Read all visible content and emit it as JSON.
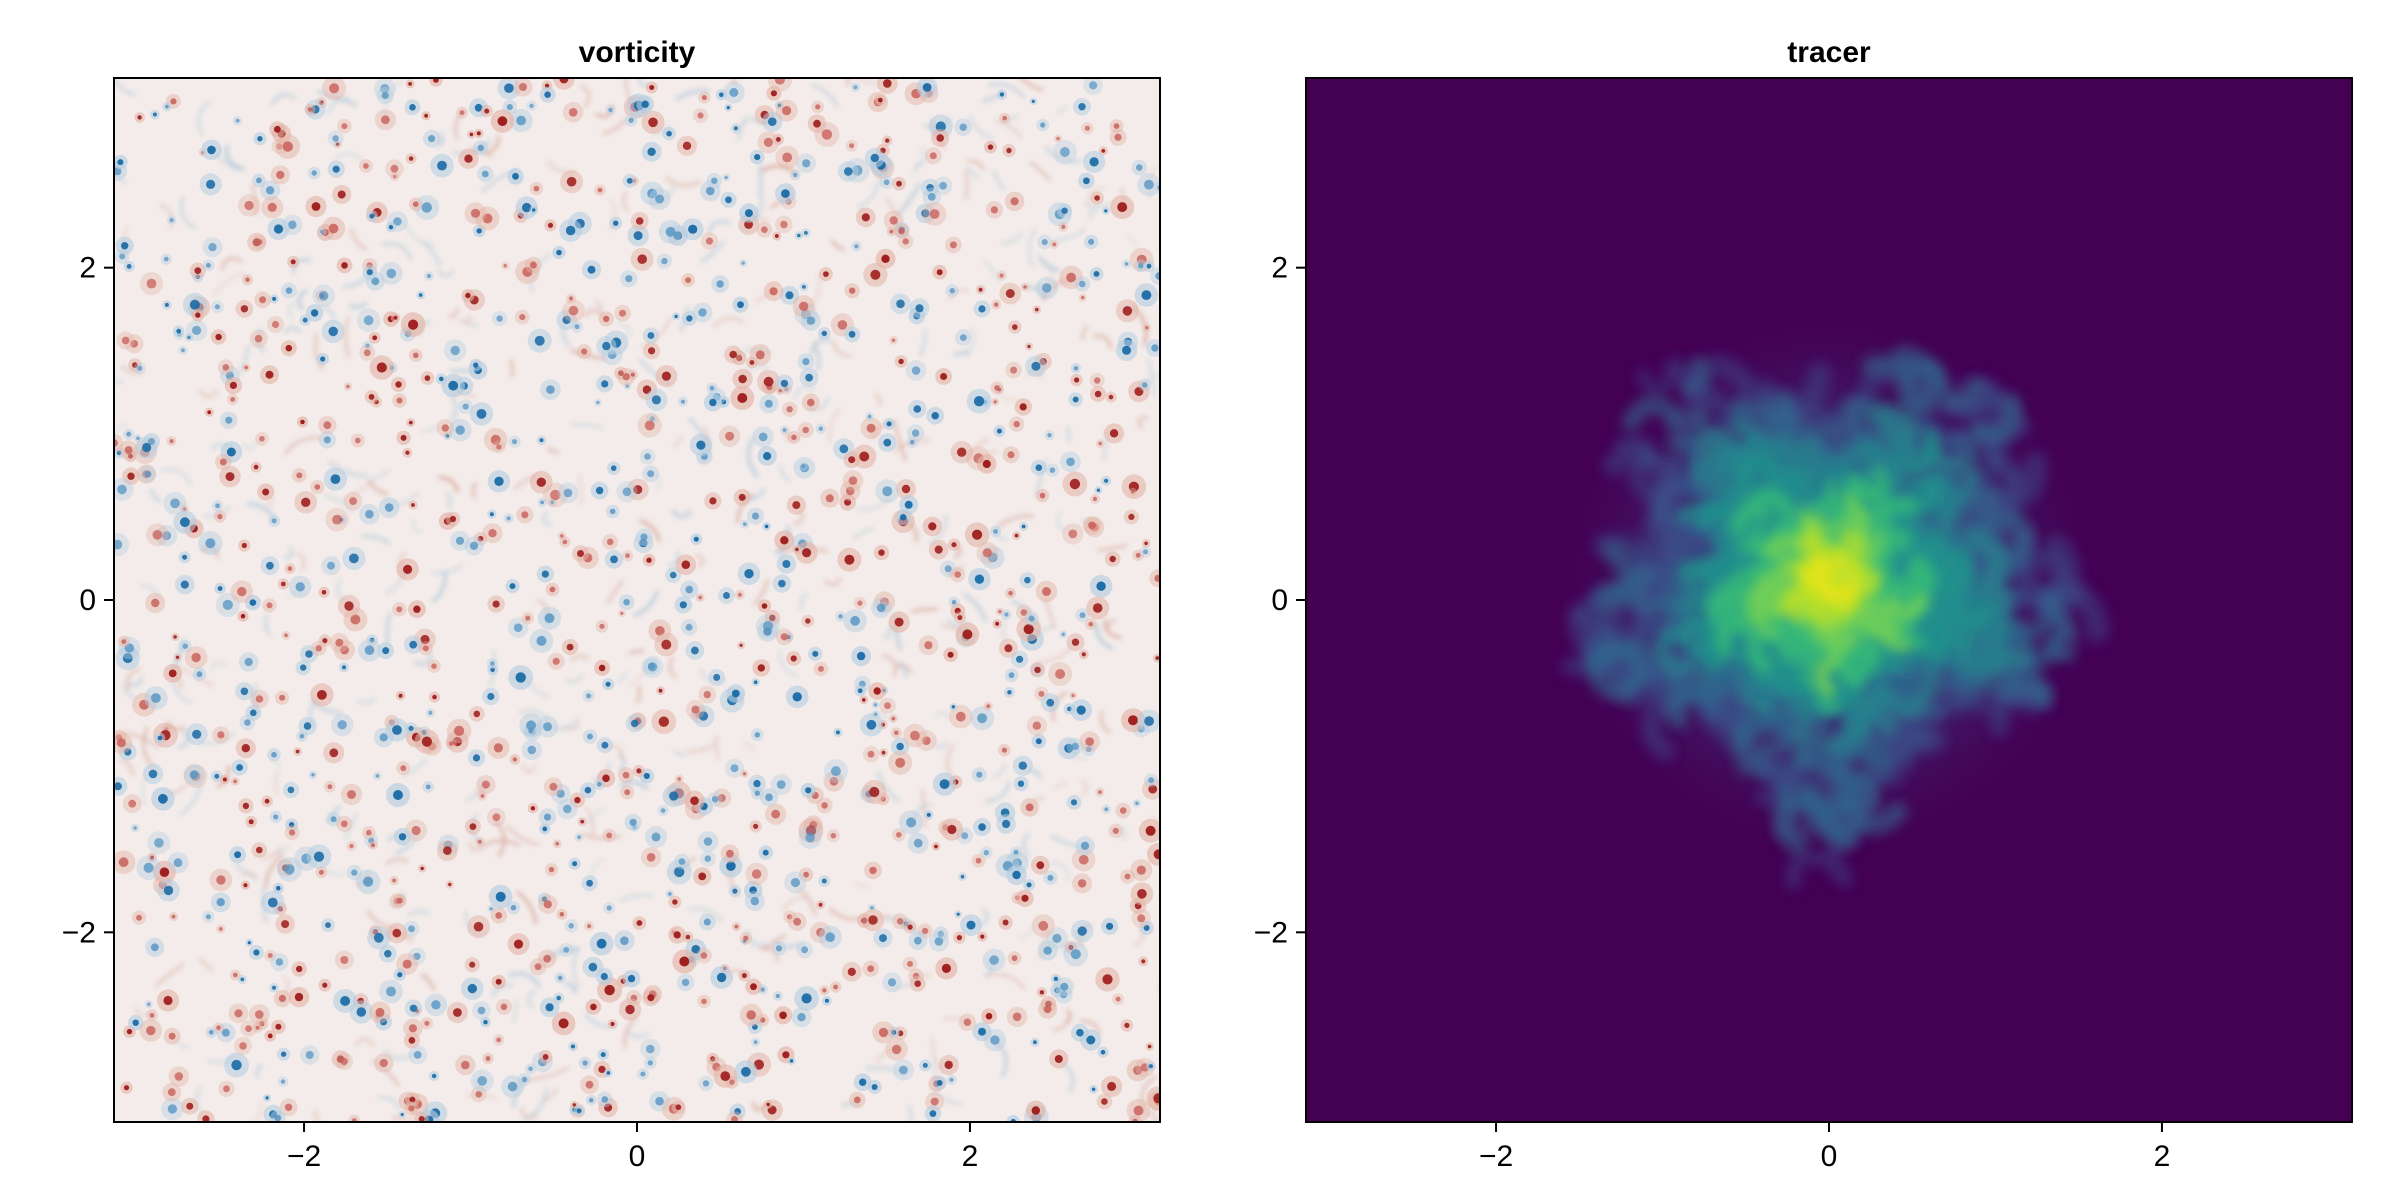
{
  "chart_data": [
    {
      "type": "heatmap",
      "title": "vorticity",
      "xlabel": "",
      "ylabel": "",
      "xlim": [
        -3.14159,
        3.14159
      ],
      "ylim": [
        -3.14159,
        3.14159
      ],
      "xticks": [
        -2,
        0,
        2
      ],
      "yticks": [
        -2,
        0,
        2
      ],
      "xtick_labels": [
        "−2",
        "0",
        "2"
      ],
      "ytick_labels": [
        "−2",
        "0",
        "2"
      ],
      "colormap": "balance (red-white-blue diverging)",
      "field": "many small red and blue vortices scattered uniformly over a near-white background",
      "colors": {
        "positive": "#a0201f",
        "negative": "#1f6ea8",
        "zero": "#f3ecea"
      },
      "grid": false
    },
    {
      "type": "heatmap",
      "title": "tracer",
      "xlabel": "",
      "ylabel": "",
      "xlim": [
        -3.14159,
        3.14159
      ],
      "ylim": [
        -3.14159,
        3.14159
      ],
      "xticks": [
        -2,
        0,
        2
      ],
      "yticks": [
        -2,
        0,
        2
      ],
      "xtick_labels": [
        "−2",
        "0",
        "2"
      ],
      "ytick_labels": [
        "−2",
        "0",
        "2"
      ],
      "colormap": "viridis",
      "field": "turbulent blob of high concentration centered near (0, 0), extent about radius 1.7, peak concentration yellow near center",
      "blob_center": [
        0.0,
        0.1
      ],
      "blob_radius": 1.6,
      "colors": {
        "background": "#440154",
        "mid": "#21918c",
        "peak": "#e8e419"
      },
      "grid": false
    }
  ]
}
